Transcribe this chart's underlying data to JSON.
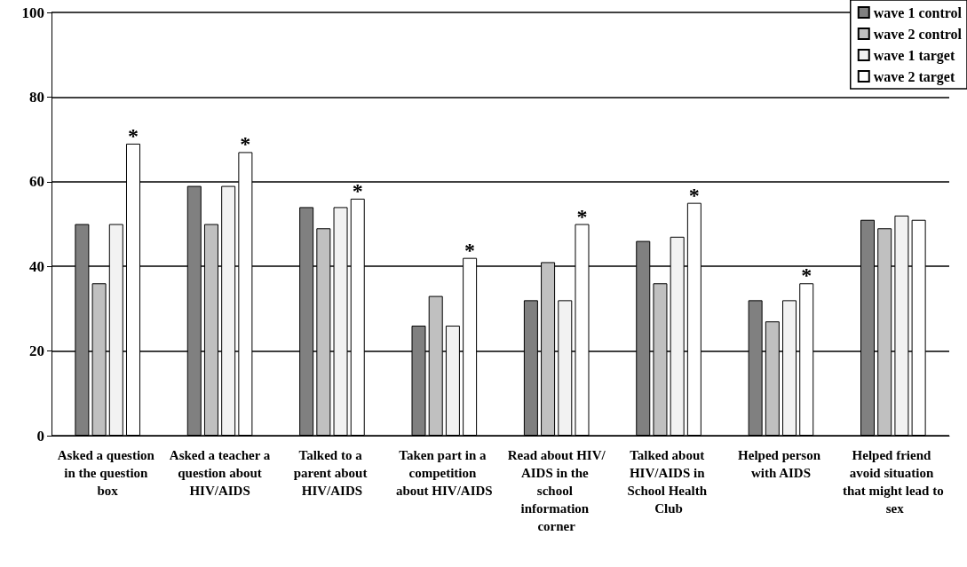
{
  "chart_data": {
    "type": "bar",
    "categories": [
      "Asked a question in the question box",
      "Asked a teacher a question about HIV/AIDS",
      "Talked to a parent about HIV/AIDS",
      "Taken part in a competition about HIV/AIDS",
      "Read about HIV/AIDS in the school information corner",
      "Talked about HIV/AIDS in School Health Club",
      "Helped person with AIDS",
      "Helped friend avoid situation that might lead to sex"
    ],
    "series": [
      {
        "name": "wave 1 control",
        "color": "#808080",
        "values": [
          50,
          59,
          54,
          26,
          32,
          46,
          32,
          51
        ]
      },
      {
        "name": "wave 2 control",
        "color": "#c0c0c0",
        "values": [
          36,
          50,
          49,
          33,
          41,
          36,
          27,
          49
        ]
      },
      {
        "name": "wave 1 target",
        "color": "#f2f2f2",
        "values": [
          50,
          59,
          54,
          26,
          32,
          47,
          32,
          52
        ]
      },
      {
        "name": "wave 2 target",
        "color": "#ffffff",
        "values": [
          69,
          67,
          56,
          42,
          50,
          55,
          36,
          51
        ],
        "value_labels": [
          "*",
          "*",
          "*",
          "*",
          "*",
          "*",
          "*",
          null
        ]
      }
    ],
    "ylim": [
      0,
      100
    ],
    "yticks": [
      0,
      20,
      40,
      60,
      80,
      100
    ],
    "grid": "y",
    "legend": "top right"
  }
}
